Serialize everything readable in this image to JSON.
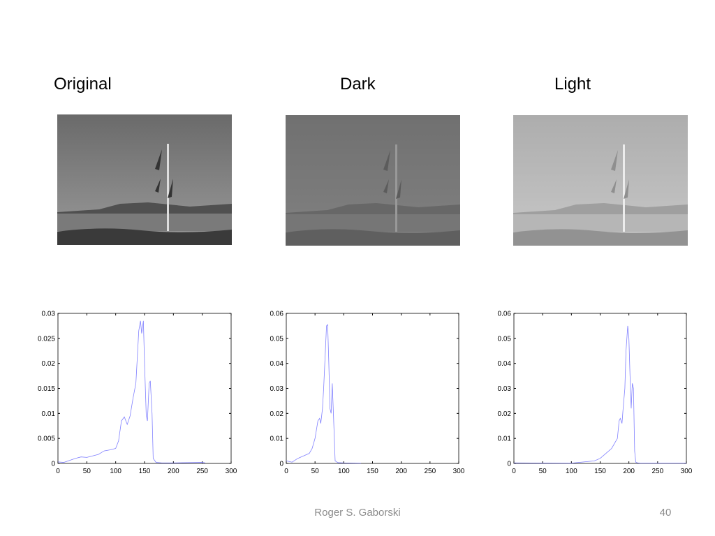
{
  "headings": [
    "Original",
    "Dark",
    "Light"
  ],
  "footer": "Roger S. Gaborski",
  "page_number": "40",
  "chart_data": [
    {
      "type": "line",
      "x": [
        0,
        10,
        20,
        30,
        40,
        50,
        60,
        70,
        80,
        90,
        100,
        105,
        110,
        115,
        120,
        125,
        130,
        135,
        140,
        143,
        145,
        148,
        150,
        153,
        155,
        158,
        160,
        163,
        165,
        170,
        180,
        200,
        250,
        255
      ],
      "series": [
        {
          "color": "#8080ff",
          "values": [
            0.0003,
            0.0002,
            0.0006,
            0.001,
            0.0013,
            0.0012,
            0.0015,
            0.0018,
            0.0025,
            0.0027,
            0.003,
            0.0045,
            0.0085,
            0.0093,
            0.0078,
            0.0095,
            0.013,
            0.016,
            0.0265,
            0.0285,
            0.026,
            0.0285,
            0.02,
            0.0095,
            0.0085,
            0.016,
            0.0165,
            0.01,
            0.001,
            0.0002,
            0.0001,
            0.0001,
            0.0002,
            0.0001
          ]
        }
      ],
      "xlim": [
        0,
        300
      ],
      "xticks": [
        0,
        50,
        100,
        150,
        200,
        250,
        300
      ],
      "ylim": [
        0,
        0.03
      ],
      "yticks": [
        0,
        0.005,
        0.01,
        0.015,
        0.02,
        0.025,
        0.03
      ]
    },
    {
      "type": "line",
      "x": [
        0,
        10,
        20,
        30,
        40,
        45,
        50,
        55,
        58,
        60,
        63,
        65,
        68,
        70,
        72,
        74,
        76,
        78,
        80,
        82,
        85,
        90,
        100,
        130
      ],
      "series": [
        {
          "color": "#8080ff",
          "values": [
            0.001,
            0.0005,
            0.002,
            0.003,
            0.004,
            0.006,
            0.01,
            0.017,
            0.018,
            0.016,
            0.022,
            0.03,
            0.045,
            0.055,
            0.0555,
            0.04,
            0.022,
            0.02,
            0.032,
            0.02,
            0.001,
            0.0003,
            0.0002,
            0.0001
          ]
        }
      ],
      "xlim": [
        0,
        300
      ],
      "xticks": [
        0,
        50,
        100,
        150,
        200,
        250,
        300
      ],
      "ylim": [
        0,
        0.06
      ],
      "yticks": [
        0,
        0.01,
        0.02,
        0.03,
        0.04,
        0.05,
        0.06
      ]
    },
    {
      "type": "line",
      "x": [
        0,
        100,
        140,
        150,
        160,
        170,
        180,
        183,
        185,
        188,
        190,
        193,
        195,
        198,
        200,
        202,
        204,
        206,
        208,
        210,
        212,
        215,
        220,
        300
      ],
      "series": [
        {
          "color": "#8080ff",
          "values": [
            0.0002,
            0.0001,
            0.001,
            0.002,
            0.004,
            0.006,
            0.01,
            0.017,
            0.018,
            0.016,
            0.022,
            0.03,
            0.045,
            0.055,
            0.05,
            0.035,
            0.022,
            0.032,
            0.03,
            0.005,
            0.0005,
            0.0002,
            0.0001,
            0.0001
          ]
        }
      ],
      "xlim": [
        0,
        300
      ],
      "xticks": [
        0,
        50,
        100,
        150,
        200,
        250,
        300
      ],
      "ylim": [
        0,
        0.06
      ],
      "yticks": [
        0,
        0.01,
        0.02,
        0.03,
        0.04,
        0.05,
        0.06
      ]
    }
  ]
}
